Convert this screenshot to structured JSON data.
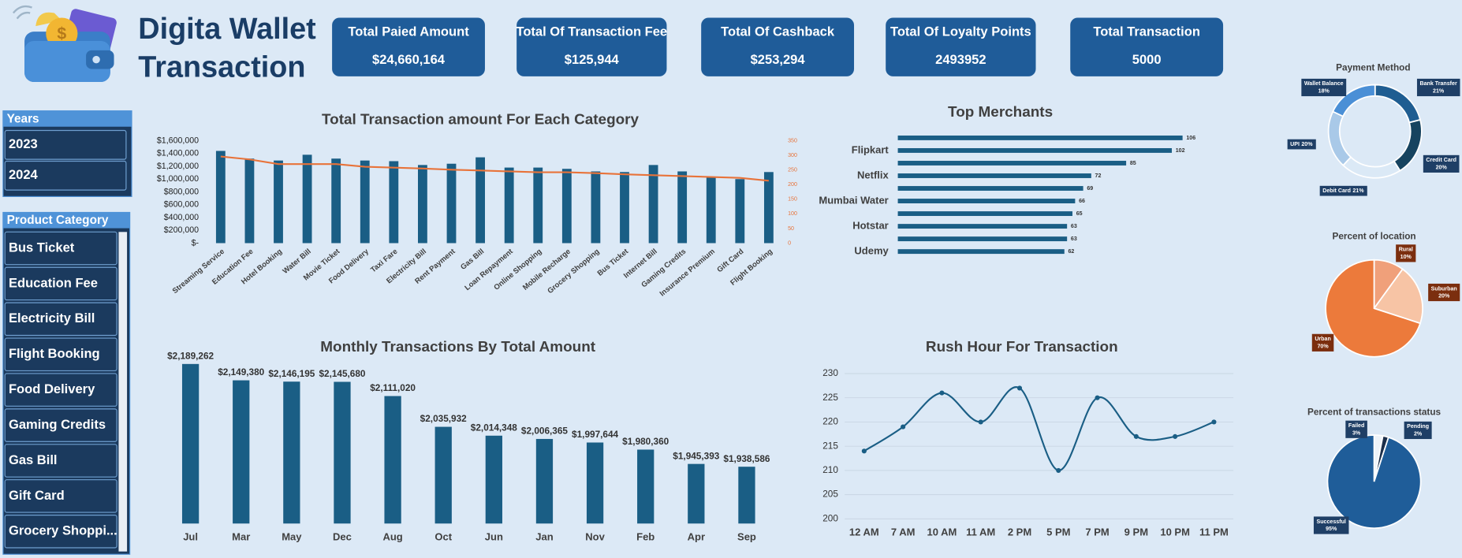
{
  "header": {
    "title_lines": [
      "Digita Wallet",
      "Transaction"
    ]
  },
  "kpis": [
    {
      "label": "Total Paied Amount",
      "value": "$24,660,164"
    },
    {
      "label": "Total Of Transaction Fee",
      "value": "$125,944"
    },
    {
      "label": "Total Of Cashback",
      "value": "$253,294"
    },
    {
      "label": "Total Of Loyalty Points",
      "value": "2493952"
    },
    {
      "label": "Total Transaction",
      "value": "5000"
    }
  ],
  "slicers": [
    {
      "title": "Years",
      "items": [
        "2023",
        "2024"
      ]
    },
    {
      "title": "Product Category",
      "items": [
        "Bus Ticket",
        "Education Fee",
        "Electricity Bill",
        "Flight Booking",
        "Food Delivery",
        "Gaming Credits",
        "Gas Bill",
        "Gift Card",
        "Grocery Shoppi..."
      ]
    }
  ],
  "chart_data": [
    {
      "type": "combo",
      "title": "Total Transaction amount For Each Category",
      "categories": [
        "Streaming Service",
        "Education Fee",
        "Hotel Booking",
        "Water Bill",
        "Movie Ticket",
        "Food Delivery",
        "Taxi Fare",
        "Electricity Bill",
        "Rent Payment",
        "Gas Bill",
        "Loan Repayment",
        "Online Shopping",
        "Mobile Recharge",
        "Grocery Shopping",
        "Bus Ticket",
        "Internet Bill",
        "Gaming Credits",
        "Insurance Premium",
        "Gift Card",
        "Flight Booking"
      ],
      "series": [
        {
          "type": "bar",
          "color": "#1a5e85",
          "values": [
            1440000,
            1320000,
            1290000,
            1380000,
            1320000,
            1290000,
            1280000,
            1220000,
            1240000,
            1340000,
            1180000,
            1180000,
            1160000,
            1120000,
            1110000,
            1220000,
            1120000,
            1030000,
            1000000,
            1110000
          ]
        },
        {
          "type": "line",
          "axis": "y2",
          "color": "#e8733a",
          "values": [
            296,
            286,
            270,
            270,
            270,
            261,
            258,
            255,
            251,
            248,
            245,
            242,
            242,
            239,
            235,
            232,
            229,
            226,
            223,
            213
          ]
        }
      ],
      "ylim": [
        0,
        1600000
      ],
      "yticks": [
        {
          "value": 0,
          "label": "$-"
        },
        {
          "value": 200000,
          "label": "$200,000"
        },
        {
          "value": 400000,
          "label": "$400,000"
        },
        {
          "value": 600000,
          "label": "$600,000"
        },
        {
          "value": 800000,
          "label": "$800,000"
        },
        {
          "value": 1000000,
          "label": "$1,000,000"
        },
        {
          "value": 1200000,
          "label": "$1,200,000"
        },
        {
          "value": 1400000,
          "label": "$1,400,000"
        },
        {
          "value": 1600000,
          "label": "$1,600,000"
        }
      ],
      "y2lim": [
        0,
        350
      ],
      "y2ticks": [
        0,
        50,
        100,
        150,
        200,
        250,
        300,
        350
      ]
    },
    {
      "type": "hbar",
      "title": "Top Merchants",
      "categories": [
        null,
        "Flipkart",
        null,
        "Netflix",
        null,
        "Mumbai Water",
        null,
        "Hotstar",
        null,
        "Udemy"
      ],
      "values": [
        106,
        102,
        85,
        72,
        69,
        66,
        65,
        63,
        63,
        62
      ],
      "color": "#1a5e85",
      "xlim": [
        0,
        110
      ]
    },
    {
      "type": "bar",
      "title": "Monthly Transactions By  Total Amount",
      "categories": [
        "Jul",
        "Mar",
        "May",
        "Dec",
        "Aug",
        "Oct",
        "Jun",
        "Jan",
        "Nov",
        "Feb",
        "Apr",
        "Sep"
      ],
      "values": [
        2189262,
        2149380,
        2146195,
        2145680,
        2111020,
        2035932,
        2014348,
        2006365,
        1997644,
        1980360,
        1945393,
        1938586
      ],
      "value_labels": [
        "$2,189,262",
        "$2,149,380",
        "$2,146,195",
        "$2,145,680",
        "$2,111,020",
        "$2,035,932",
        "$2,014,348",
        "$2,006,365",
        "$1,997,644",
        "$1,980,360",
        "$1,945,393",
        "$1,938,586"
      ],
      "color": "#1a5e85",
      "ylim": [
        1800000,
        2200000
      ]
    },
    {
      "type": "line",
      "title": "Rush Hour For Transaction",
      "categories": [
        "12 AM",
        "7 AM",
        "10 AM",
        "11 AM",
        "2 PM",
        "5 PM",
        "7 PM",
        "9 PM",
        "10 PM",
        "11 PM"
      ],
      "values": [
        214,
        219,
        226,
        220,
        227,
        210,
        225,
        217,
        217,
        220
      ],
      "color": "#1a5e85",
      "ylim": [
        200,
        230
      ],
      "yticks": [
        200,
        205,
        210,
        215,
        220,
        225,
        230
      ],
      "grid": true,
      "smooth": true
    },
    {
      "type": "donut",
      "title": "Payment Method",
      "categories": [
        "Bank Transfer",
        "Credit Card",
        "Debit Card",
        "UPI",
        "Wallet Balance"
      ],
      "values": [
        21,
        20,
        21,
        20,
        18
      ],
      "value_labels": [
        "21%",
        "20%",
        "21%",
        "20%",
        "18%"
      ],
      "colors": [
        "#1f5d91",
        "#16435f",
        "#dbe9f6",
        "#a9c9e8",
        "#4a8fd6"
      ]
    },
    {
      "type": "pie",
      "title": "Percent of location",
      "categories": [
        "Rural",
        "Suburban",
        "Urban"
      ],
      "values": [
        10,
        20,
        70
      ],
      "value_labels": [
        "10%",
        "20%",
        "70%"
      ],
      "colors": [
        "#f0a07a",
        "#f7c4a5",
        "#ec7a3b"
      ]
    },
    {
      "type": "pie",
      "title": "Percent of transactions status",
      "categories": [
        "Failed",
        "Pending",
        "Successful"
      ],
      "values": [
        3,
        2,
        95
      ],
      "value_labels": [
        "3%",
        "2%",
        "95%"
      ],
      "colors": [
        "#eef3f8",
        "#1c2f4a",
        "#1f5d99"
      ]
    }
  ]
}
